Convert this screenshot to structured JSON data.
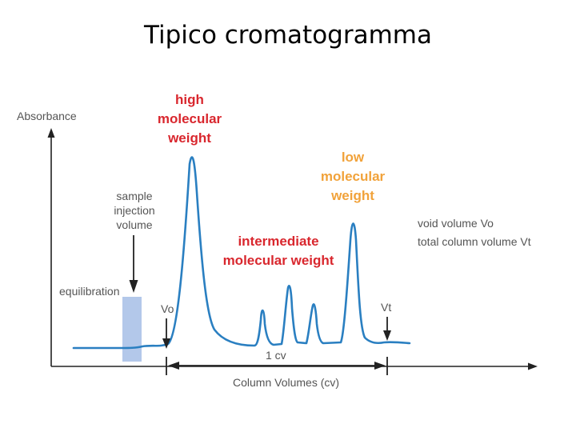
{
  "title": "Tipico cromatogramma",
  "labels": {
    "absorbance": "Absorbance",
    "high_mw": [
      "high",
      "molecular",
      "weight"
    ],
    "low_mw": [
      "low",
      "molecular",
      "weight"
    ],
    "intermediate_mw": [
      "intermediate",
      "molecular weight"
    ],
    "sample_injection": [
      "sample",
      "injection",
      "volume"
    ],
    "equilibration": "equilibration",
    "vo_marker": "Vo",
    "vt_marker": "Vt",
    "cv_span": "1 cv",
    "x_axis": "Column Volumes (cv)",
    "legend_void": "void volume Vo",
    "legend_total": "total column volume Vt"
  },
  "colors": {
    "trace": "#2a7fc1",
    "high_label": "#d9272e",
    "low_label": "#f1a23a",
    "equilibration_band": "#b3c8ea",
    "axis": "#222222"
  }
}
